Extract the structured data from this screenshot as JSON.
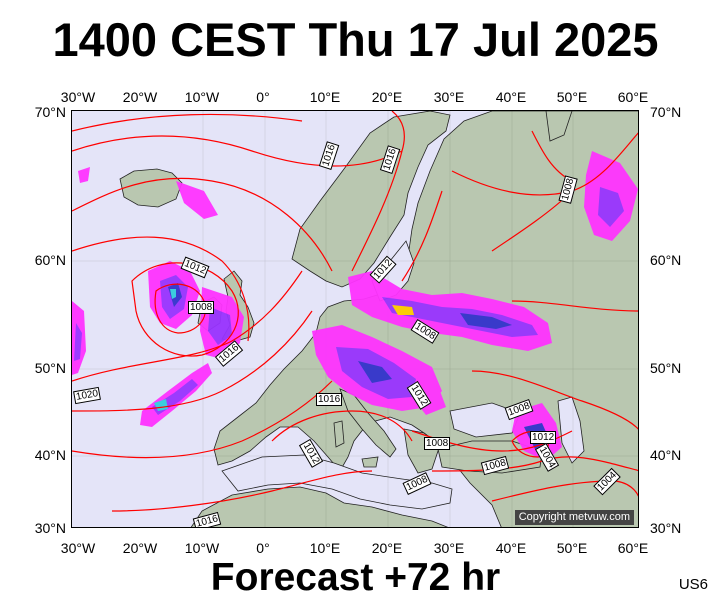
{
  "title": "1400 CEST Thu 17 Jul 2025",
  "footer": "Forecast +72 hr",
  "code": "US6",
  "copyright": "Copyright metvuw.com",
  "axes": {
    "top": [
      "30°W",
      "20°W",
      "10°W",
      "0°",
      "10°E",
      "20°E",
      "30°E",
      "40°E",
      "50°E",
      "60°E"
    ],
    "bottom": [
      "30°W",
      "20°W",
      "10°W",
      "0°",
      "10°E",
      "20°E",
      "30°E",
      "40°E",
      "50°E",
      "60°E"
    ],
    "left": [
      "70°N",
      "60°N",
      "50°N",
      "40°N",
      "30°N"
    ],
    "right": [
      "70°N",
      "60°N",
      "50°N",
      "40°N",
      "30°N"
    ]
  },
  "isobar_labels": [
    "1016",
    "1008",
    "1012",
    "1008",
    "1016",
    "1020",
    "1012",
    "1008",
    "1016",
    "1012",
    "1008",
    "1008",
    "1008",
    "1008",
    "1012",
    "1004",
    "1004",
    "1016",
    "1012",
    "1016"
  ],
  "colors": {
    "sea": "#e4e4f8",
    "land": "#b9c7b0",
    "isobar": "#ff0000",
    "precip_light": "#ff33ff",
    "precip_mid": "#9933ff",
    "precip_heavy": "#3333cc",
    "precip_extreme": "#33ccdd"
  }
}
